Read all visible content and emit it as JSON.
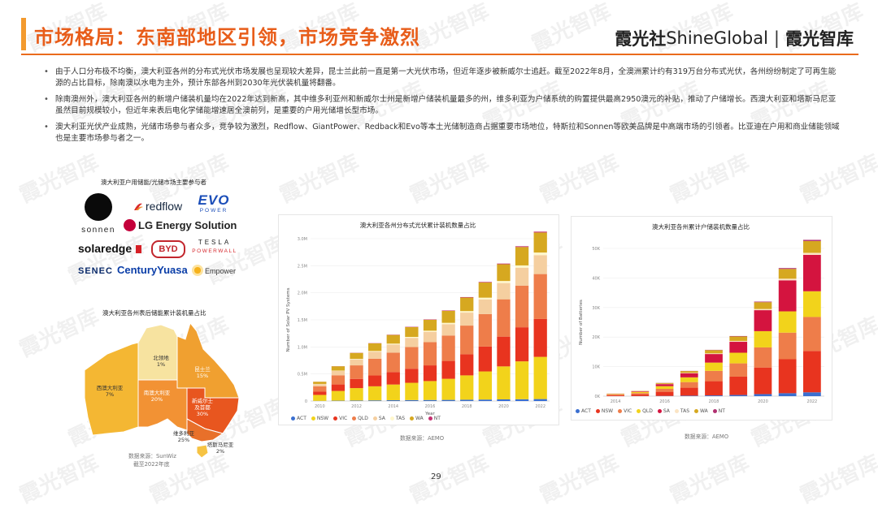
{
  "header": {
    "title": "市场格局：东南部地区引领，市场竞争激烈",
    "brand_left": "霞光社",
    "brand_mid": "ShineGlobal",
    "brand_sep": "|",
    "brand_right": "霞光智库"
  },
  "bullets": [
    "由于人口分布极不均衡，澳大利亚各州的分布式光伏市场发展也呈现较大差异，昆士兰此前一直是第一大光伏市场，但近年逐步被新威尔士追赶。截至2022年8月，全澳洲累计约有319万台分布式光伏，各州纷纷制定了可再生能源的占比目标，除南澳以水电为主外，预计东部各州到2030年光伏装机量将翻番。",
    "除南澳州外，澳大利亚各州的新增户储装机量均在2022年达到新高，其中维多利亚州和新威尔士州是新增户储装机量最多的州，维多利亚为户储系统的购置提供最高2950澳元的补贴，推动了户储增长。西澳大利亚和塔斯马尼亚虽然目前规模较小，但近年来表后电化学储能增速居全澳前列，是重要的户用光储增长型市场。",
    "澳大利亚光伏产业成熟，光储市场参与者众多，竞争较为激烈，Redflow、GiantPower、Redback和Evo等本土光储制造商占据重要市场地位，特斯拉和Sonnen等欧美品牌是中高端市场的引领者。比亚迪在户用和商业储能领域也是主要市场参与者之一。"
  ],
  "participants": {
    "caption": "澳大利亚户用储能/光储市场主要参与者",
    "logos": [
      "sonnen",
      "redflow",
      "EVO",
      "POWER",
      "LG Energy Solution",
      "solaredge",
      "BYD",
      "TESLA",
      "POWERWALL",
      "SENEC",
      "CenturyYuasa",
      "Empower"
    ]
  },
  "map": {
    "caption": "澳大利亚各州表后储能累计装机量占比",
    "regions": [
      {
        "name": "西澳大利亚",
        "value": "7%",
        "color": "#f4b733"
      },
      {
        "name": "北领地",
        "value": "1%",
        "color": "#f7e3a0"
      },
      {
        "name": "昆士兰",
        "value": "15%",
        "color": "#f0a030"
      },
      {
        "name": "南澳大利亚",
        "value": "20%",
        "color": "#f29234"
      },
      {
        "name": "新威尔士\n及首都",
        "value": "30%",
        "color": "#e8561f"
      },
      {
        "name": "维多利亚",
        "value": "25%",
        "color": "#e8702a"
      },
      {
        "name": "塔斯马尼亚",
        "value": "2%",
        "color": "#f6c343"
      }
    ],
    "source": "数据来源：SunWiz",
    "date": "截至2022年底"
  },
  "chart_left_meta": {
    "xlabel": "Year",
    "ylabel": "Number of Solar PV Systems",
    "source": "数据来源：AEMO"
  },
  "chart_right_meta": {
    "ylabel": "Number of Batteries",
    "source": "数据来源：AEMO"
  },
  "chart_data": [
    {
      "type": "bar",
      "stacked": true,
      "title": "澳大利亚各州分布式光伏累计装机数量占比",
      "xlabel": "Year",
      "ylabel": "Number of Solar PV Systems",
      "categories": [
        "2010",
        "2011",
        "2012",
        "2013",
        "2014",
        "2015",
        "2016",
        "2017",
        "2018",
        "2019",
        "2020",
        "2021",
        "2022"
      ],
      "x_ticks": [
        "2010",
        "2012",
        "2014",
        "2016",
        "2018",
        "2020",
        "2022"
      ],
      "ylim": [
        0,
        3000000
      ],
      "y_ticks": [
        "0",
        "0.5M",
        "1.0M",
        "1.5M",
        "2.0M",
        "2.5M",
        "3.0M"
      ],
      "y_tick_values": [
        0,
        500000,
        1000000,
        1500000,
        2000000,
        2500000,
        3000000
      ],
      "series": [
        {
          "name": "ACT",
          "color": "#3b6fd0",
          "values": [
            3000,
            6000,
            9000,
            12000,
            15000,
            17000,
            19000,
            21000,
            24000,
            27000,
            30000,
            33000,
            36000
          ]
        },
        {
          "name": "NSW",
          "color": "#f2d31b",
          "values": [
            110000,
            180000,
            230000,
            260000,
            290000,
            320000,
            350000,
            390000,
            450000,
            520000,
            610000,
            700000,
            780000
          ]
        },
        {
          "name": "VIC",
          "color": "#e8341f",
          "values": [
            60000,
            120000,
            170000,
            200000,
            230000,
            260000,
            290000,
            330000,
            390000,
            460000,
            550000,
            630000,
            700000
          ]
        },
        {
          "name": "QLD",
          "color": "#ee7d4a",
          "values": [
            100000,
            170000,
            250000,
            310000,
            360000,
            400000,
            430000,
            470000,
            530000,
            600000,
            690000,
            770000,
            830000
          ]
        },
        {
          "name": "SA",
          "color": "#f5cfa0",
          "values": [
            40000,
            80000,
            110000,
            130000,
            150000,
            170000,
            190000,
            210000,
            240000,
            270000,
            300000,
            330000,
            350000
          ]
        },
        {
          "name": "TAS",
          "color": "#fff7cc",
          "values": [
            3000,
            6000,
            10000,
            13000,
            16000,
            18000,
            21000,
            24000,
            28000,
            33000,
            38000,
            43000,
            48000
          ]
        },
        {
          "name": "WA",
          "color": "#d6a820",
          "values": [
            40000,
            80000,
            110000,
            140000,
            160000,
            180000,
            200000,
            220000,
            250000,
            280000,
            310000,
            340000,
            370000
          ]
        },
        {
          "name": "NT",
          "color": "#c43070",
          "values": [
            1000,
            2000,
            3000,
            4000,
            5000,
            6000,
            7000,
            8000,
            9000,
            10000,
            12000,
            14000,
            16000
          ]
        }
      ]
    },
    {
      "type": "bar",
      "stacked": true,
      "title": "澳大利亚各州累计户储装机数量占比",
      "xlabel": "",
      "ylabel": "Number of Batteries",
      "categories": [
        "2014",
        "2015",
        "2016",
        "2017",
        "2018",
        "2019",
        "2020",
        "2021",
        "2022"
      ],
      "x_ticks": [
        "2014",
        "2016",
        "2018",
        "2020",
        "2022"
      ],
      "ylim": [
        0,
        50000
      ],
      "y_ticks": [
        "0K",
        "10K",
        "20K",
        "30K",
        "40K",
        "50K"
      ],
      "y_tick_values": [
        0,
        10000,
        20000,
        30000,
        40000,
        50000
      ],
      "series": [
        {
          "name": "ACT",
          "color": "#3b6fd0",
          "values": [
            20,
            40,
            80,
            160,
            260,
            400,
            700,
            1000,
            1300
          ]
        },
        {
          "name": "NSW",
          "color": "#e8341f",
          "values": [
            300,
            600,
            1400,
            2700,
            4800,
            6200,
            9000,
            11500,
            14000
          ]
        },
        {
          "name": "VIC",
          "color": "#ee7d4a",
          "values": [
            200,
            400,
            1000,
            1900,
            3500,
            4500,
            6800,
            9000,
            11500
          ]
        },
        {
          "name": "QLD",
          "color": "#f2d31b",
          "values": [
            150,
            350,
            900,
            1600,
            2800,
            3600,
            5500,
            7200,
            8700
          ]
        },
        {
          "name": "SA",
          "color": "#d4143f",
          "values": [
            100,
            200,
            700,
            1400,
            2900,
            3700,
            7100,
            10500,
            12300
          ]
        },
        {
          "name": "TAS",
          "color": "#fbe4c4",
          "values": [
            20,
            30,
            70,
            130,
            220,
            300,
            400,
            550,
            700
          ]
        },
        {
          "name": "WA",
          "color": "#d6a820",
          "values": [
            60,
            120,
            300,
            600,
            1100,
            1500,
            2300,
            3300,
            4000
          ]
        },
        {
          "name": "NT",
          "color": "#b03070",
          "values": [
            10,
            20,
            40,
            60,
            100,
            150,
            200,
            300,
            400
          ]
        }
      ]
    }
  ],
  "page_number": "29",
  "watermark_text": "霞光智库"
}
